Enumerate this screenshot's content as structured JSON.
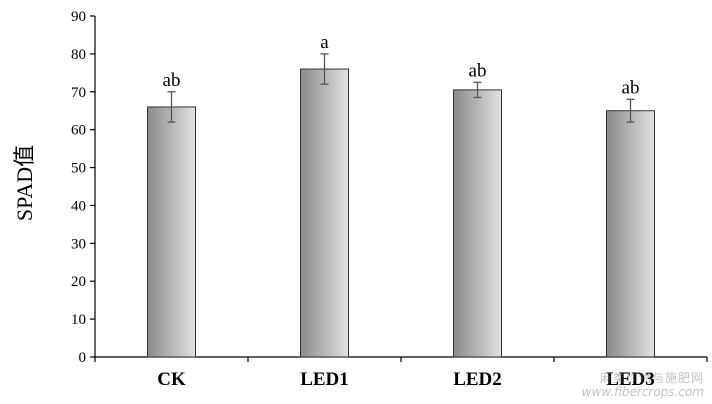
{
  "chart_data": {
    "type": "bar",
    "categories": [
      "CK",
      "LED1",
      "LED2",
      "LED3"
    ],
    "values": [
      66,
      76,
      70.5,
      65
    ],
    "errors": [
      4,
      4,
      2,
      3
    ],
    "significance": [
      "ab",
      "a",
      "ab",
      "ab"
    ],
    "ylabel": "SPAD值",
    "xlabel": "",
    "ylim": [
      0,
      90
    ],
    "yticks": [
      0,
      10,
      20,
      30,
      40,
      50,
      60,
      70,
      80,
      90
    ],
    "grid": false,
    "legend": "none",
    "bar_gradient": [
      "#8a8a8a",
      "#e2e2e2"
    ]
  },
  "watermark": {
    "line1": "麻类作物与施肥网",
    "line2": "www.fibercrops.com"
  }
}
